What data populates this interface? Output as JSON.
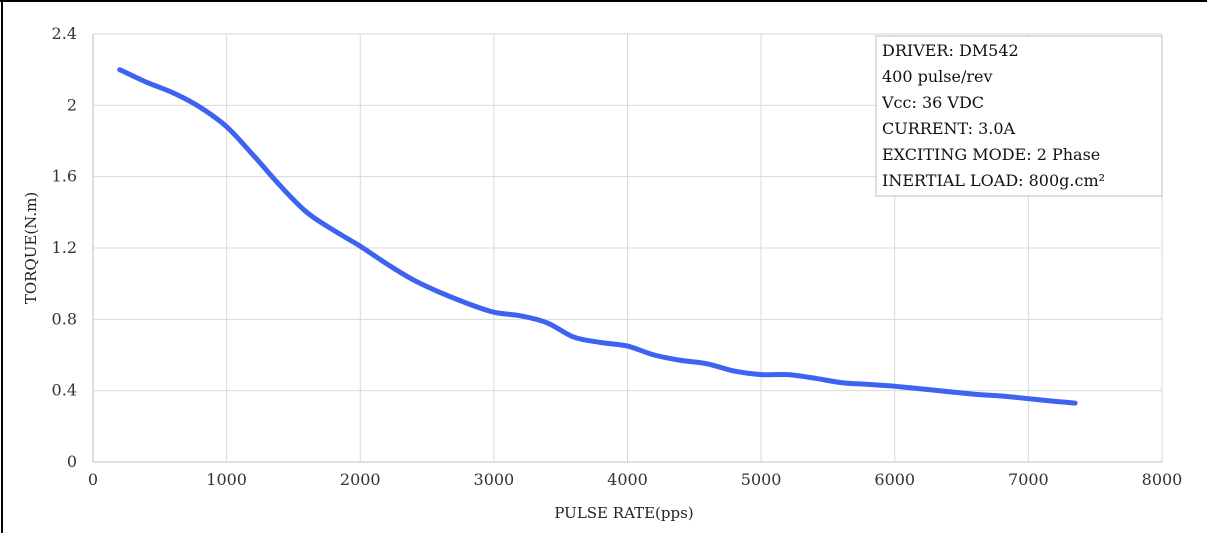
{
  "chart_data": {
    "type": "line",
    "title": "",
    "xlabel": "PULSE  RATE(pps)",
    "ylabel": "TORQUE(N.m)",
    "xlim": [
      0,
      8000
    ],
    "ylim": [
      0,
      2.4
    ],
    "x_ticks": [
      "0",
      "1000",
      "2000",
      "3000",
      "4000",
      "5000",
      "6000",
      "7000",
      "8000"
    ],
    "y_ticks": [
      "0",
      "0.4",
      "0.8",
      "1.2",
      "1.6",
      "2",
      "2.4"
    ],
    "grid": true,
    "legend_position": "top-right",
    "legend_lines": [
      "DRIVER: DM542",
      "400  pulse/rev",
      "Vcc: 36 VDC",
      "CURRENT: 3.0A",
      "EXCITING MODE: 2 Phase",
      "INERTIAL LOAD: 800g.cm²"
    ],
    "series": [
      {
        "color": "#3d63f0",
        "x": [
          200,
          400,
          600,
          800,
          1000,
          1200,
          1400,
          1600,
          1800,
          2000,
          2200,
          2400,
          2600,
          2800,
          3000,
          3200,
          3400,
          3600,
          3800,
          4000,
          4200,
          4400,
          4600,
          4800,
          5000,
          5200,
          5400,
          5600,
          5800,
          6000,
          6200,
          6400,
          6600,
          6800,
          7000,
          7200,
          7350
        ],
        "y": [
          2.2,
          2.13,
          2.07,
          1.99,
          1.88,
          1.72,
          1.55,
          1.4,
          1.3,
          1.21,
          1.11,
          1.02,
          0.95,
          0.89,
          0.84,
          0.82,
          0.78,
          0.7,
          0.67,
          0.65,
          0.6,
          0.57,
          0.55,
          0.51,
          0.49,
          0.49,
          0.47,
          0.445,
          0.435,
          0.425,
          0.41,
          0.395,
          0.38,
          0.37,
          0.355,
          0.34,
          0.33
        ]
      }
    ]
  }
}
